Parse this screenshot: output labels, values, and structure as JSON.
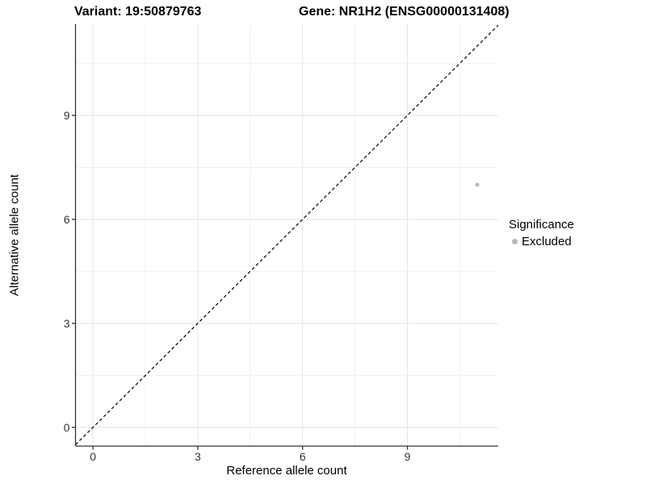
{
  "header": {
    "variant_title": "Variant: 19:50879763",
    "gene_title": "Gene: NR1H2 (ENSG00000131408)"
  },
  "axes": {
    "x_label": "Reference allele count",
    "y_label": "Alternative allele count"
  },
  "legend": {
    "title": "Significance",
    "items": [
      {
        "label": "Excluded",
        "color": "#b9b9b9"
      }
    ]
  },
  "colors": {
    "background": "#ffffff",
    "grid_major": "#e5e5e5",
    "grid_minor": "#f0f0f0",
    "axis_line": "#333333",
    "tick_label": "#333333",
    "reference_line": "#000000",
    "point": "#b9b9b9"
  },
  "chart_data": {
    "type": "scatter",
    "title": "Variant: 19:50879763   Gene: NR1H2 (ENSG00000131408)",
    "xlabel": "Reference allele count",
    "ylabel": "Alternative allele count",
    "xlim": [
      -0.5,
      11.6
    ],
    "ylim": [
      -0.54,
      11.63
    ],
    "x_ticks": [
      0,
      3,
      6,
      9
    ],
    "y_ticks": [
      0,
      3,
      6,
      9
    ],
    "x_minor_ticks": [
      1.5,
      4.5,
      7.5,
      10.5
    ],
    "y_minor_ticks": [
      1.5,
      4.5,
      7.5,
      10.5
    ],
    "grid": "major_and_minor",
    "legend_position": "right",
    "series": [
      {
        "name": "Excluded",
        "color": "#b9b9b9",
        "marker_size": 5,
        "points": [
          {
            "x": 11,
            "y": 7
          }
        ]
      }
    ],
    "reference_line": {
      "kind": "identity",
      "slope": 1,
      "intercept": 0,
      "style": "dashed",
      "color": "#000000"
    }
  }
}
